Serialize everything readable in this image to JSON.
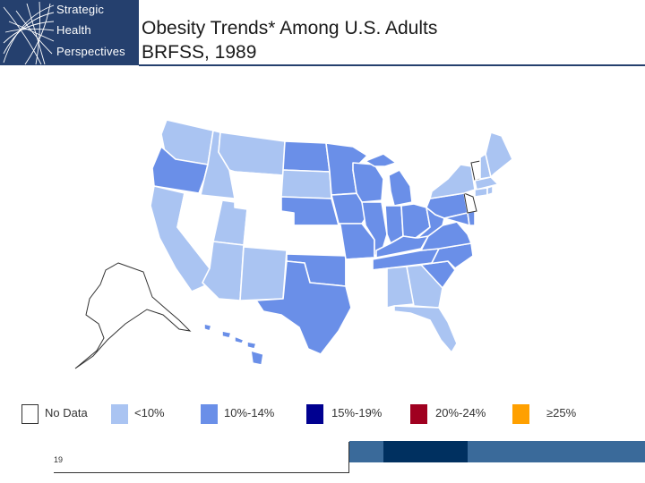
{
  "logo": {
    "lines": [
      "Strategic",
      "Health",
      "Perspectives"
    ],
    "icon": "globe-grid-icon",
    "color": "#25406e"
  },
  "title": {
    "line1": "Obesity Trends* Among U.S. Adults",
    "line2": "BRFSS, 1989"
  },
  "legend": [
    {
      "label": "No Data",
      "color": "#ffffff"
    },
    {
      "label": "<10%",
      "color": "#aac4f2"
    },
    {
      "label": "10%-14%",
      "color": "#6a8fe8"
    },
    {
      "label": "15%-19%",
      "color": "#000090"
    },
    {
      "label": "20%-24%",
      "color": "#a00020"
    },
    {
      "label": "≥25%",
      "color": "#ffa000"
    }
  ],
  "footer": {
    "page_number": "19",
    "bar_colors": [
      "#3a6a9a",
      "#003060",
      "#3a6a9a"
    ]
  },
  "map": {
    "states": {
      "WA": "<10%",
      "OR": "10%-14%",
      "CA": "<10%",
      "NV": "No Data",
      "ID": "<10%",
      "MT": "<10%",
      "WY": "No Data",
      "UT": "<10%",
      "AZ": "<10%",
      "CO": "No Data",
      "NM": "<10%",
      "ND": "10%-14%",
      "SD": "<10%",
      "NE": "10%-14%",
      "KS": "No Data",
      "OK": "10%-14%",
      "TX": "10%-14%",
      "MN": "10%-14%",
      "IA": "10%-14%",
      "MO": "10%-14%",
      "AR": "No Data",
      "LA": "No Data",
      "WI": "10%-14%",
      "IL": "10%-14%",
      "MI": "10%-14%",
      "IN": "10%-14%",
      "OH": "10%-14%",
      "KY": "10%-14%",
      "TN": "10%-14%",
      "MS": "No Data",
      "AL": "<10%",
      "GA": "<10%",
      "FL": "<10%",
      "SC": "10%-14%",
      "NC": "10%-14%",
      "VA": "10%-14%",
      "WV": "10%-14%",
      "PA": "10%-14%",
      "NY": "<10%",
      "VT": "No Data",
      "NH": "<10%",
      "ME": "<10%",
      "MA": "<10%",
      "CT": "<10%",
      "RI": "<10%",
      "NJ": "No Data",
      "DE": "10%-14%",
      "MD": "10%-14%",
      "AK": "No Data",
      "HI": "10%-14%"
    }
  }
}
